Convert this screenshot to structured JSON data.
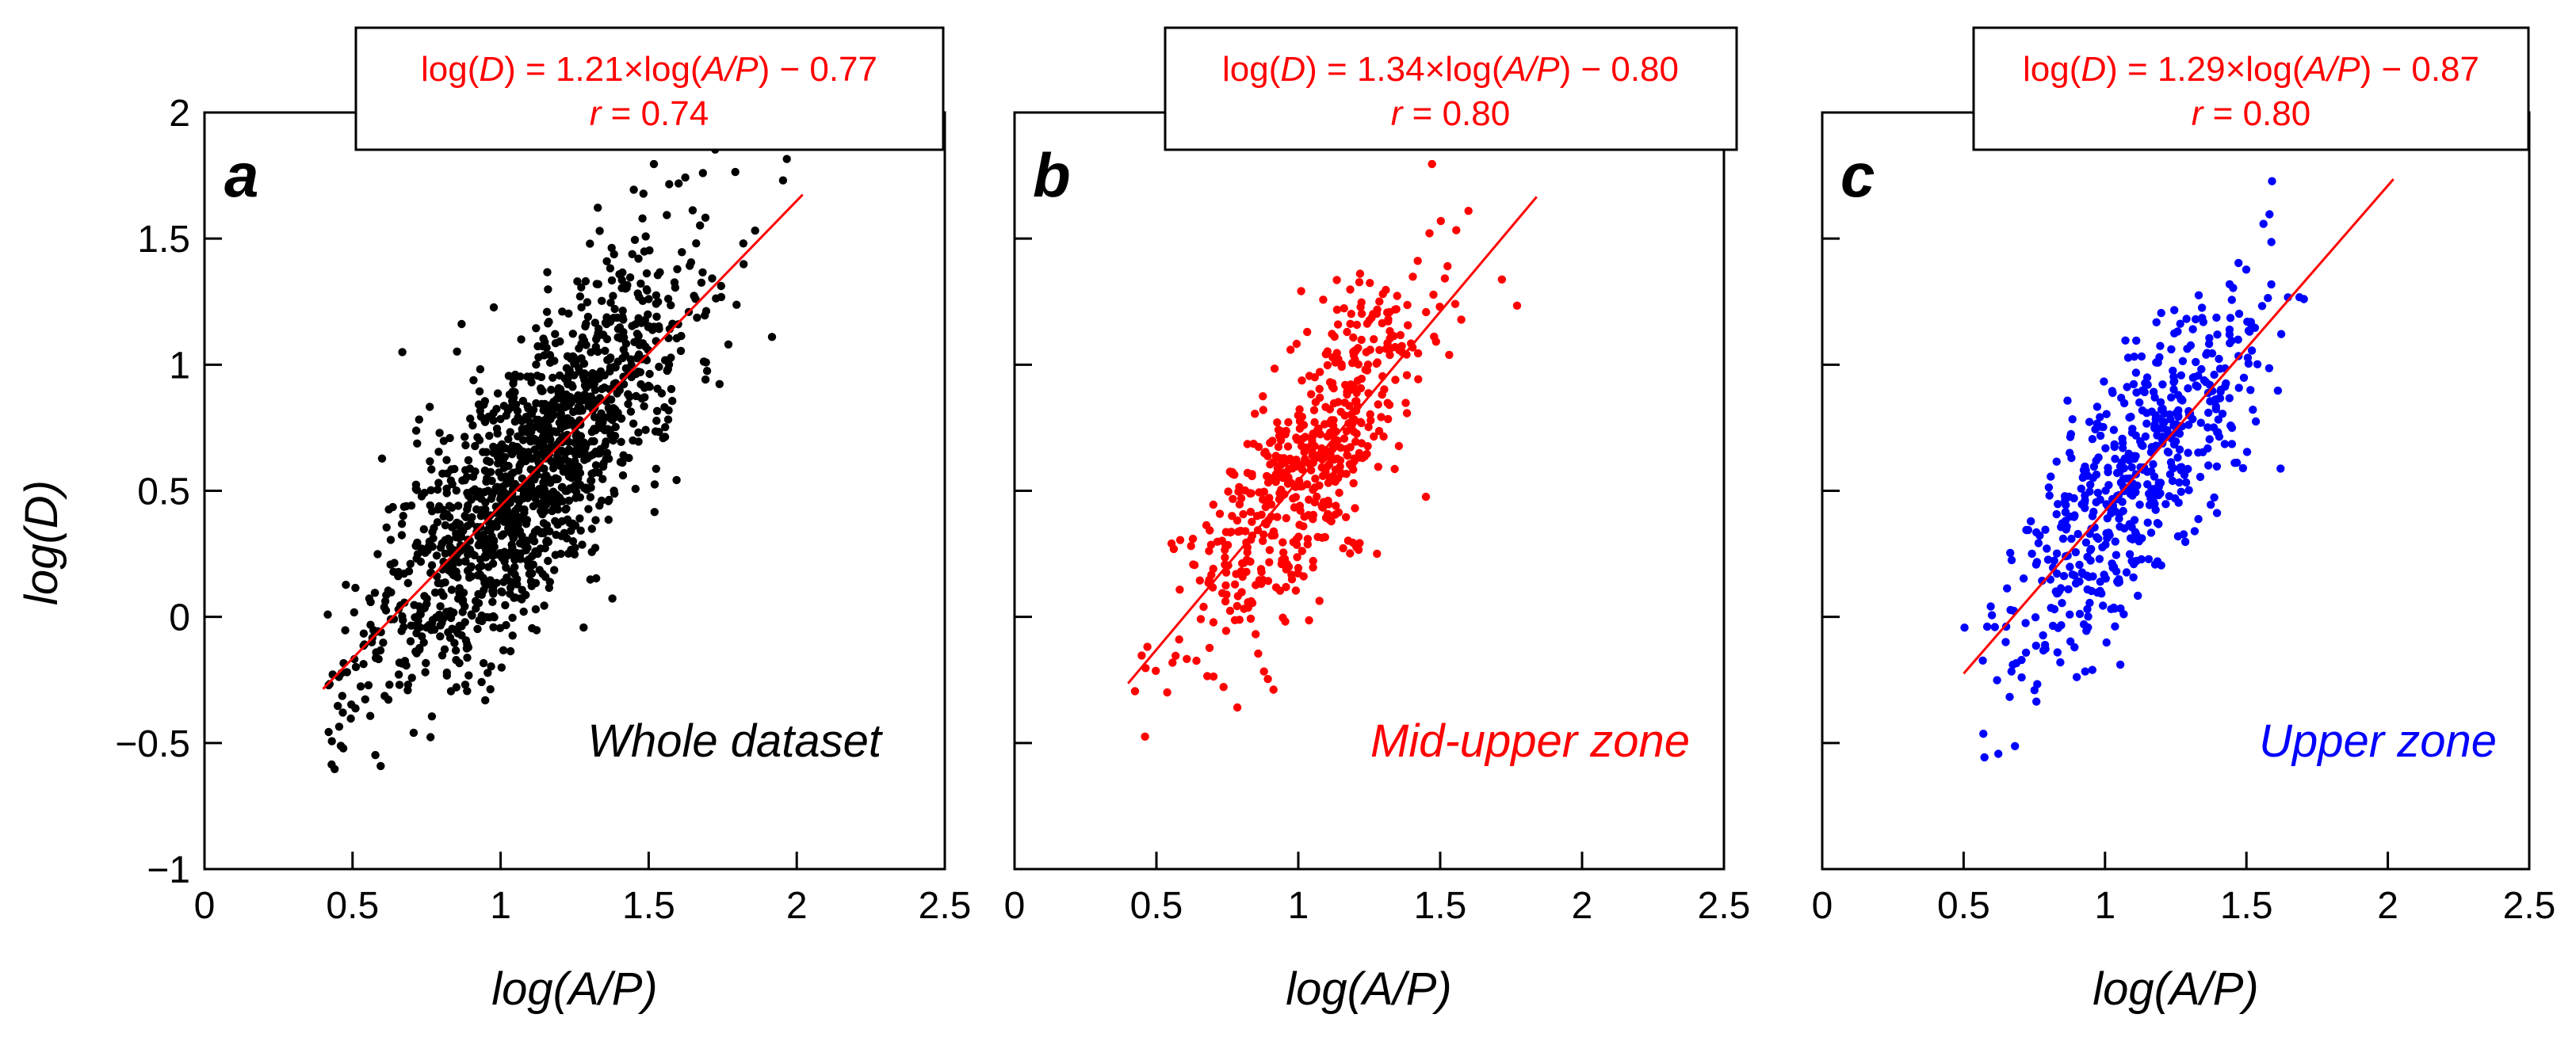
{
  "figure": {
    "ylabel": "log(D)",
    "xlabel": "log(A/P)",
    "xticks": [
      "0",
      "0.5",
      "1",
      "1.5",
      "2",
      "2.5"
    ],
    "yticks": [
      "2",
      "1.5",
      "1",
      "0.5",
      "0",
      "−0.5",
      "−1"
    ],
    "xlim": [
      0,
      2.5
    ],
    "ylim": [
      -1,
      2
    ]
  },
  "chart_data": [
    {
      "type": "scatter",
      "panel": "a",
      "label": "Whole dataset",
      "color": "#000000",
      "equation": {
        "lhs_fn": "log(",
        "lhs_var": "D",
        "mid": ") = 1.21×log(",
        "rhs_var": "A/P",
        "tail": ") − 0.77"
      },
      "r_text": {
        "var": "r",
        "value": " = 0.74"
      },
      "fit": {
        "slope": 1.21,
        "intercept": -0.77,
        "x_range": [
          0.4,
          2.02
        ],
        "color": "#ff0000"
      },
      "cloud": {
        "n": 1400,
        "x_center": 1.1,
        "x_sd": 0.27,
        "x_min": 0.4,
        "x_max": 2.0,
        "resid_sd": 0.27,
        "seed": 11
      }
    },
    {
      "type": "scatter",
      "panel": "b",
      "label": "Mid-upper zone",
      "color": "#ff0000",
      "equation": {
        "lhs_fn": "log(",
        "lhs_var": "D",
        "mid": ") = 1.34×log(",
        "rhs_var": "A/P",
        "tail": ") − 0.80"
      },
      "r_text": {
        "var": "r",
        "value": " = 0.80"
      },
      "fit": {
        "slope": 1.34,
        "intercept": -0.8,
        "x_range": [
          0.4,
          1.84
        ],
        "color": "#ff0000"
      },
      "cloud": {
        "n": 560,
        "x_center": 1.02,
        "x_sd": 0.22,
        "x_min": 0.4,
        "x_max": 1.8,
        "resid_sd": 0.24,
        "seed": 23
      }
    },
    {
      "type": "scatter",
      "panel": "c",
      "label": "Upper zone",
      "color": "#0000ff",
      "equation": {
        "lhs_fn": "log(",
        "lhs_var": "D",
        "mid": ") = 1.29×log(",
        "rhs_var": "A/P",
        "tail": ") − 0.87"
      },
      "r_text": {
        "var": "r",
        "value": " = 0.80"
      },
      "fit": {
        "slope": 1.29,
        "intercept": -0.87,
        "x_range": [
          0.5,
          2.02
        ],
        "color": "#ff0000"
      },
      "cloud": {
        "n": 560,
        "x_center": 1.12,
        "x_sd": 0.22,
        "x_min": 0.5,
        "x_max": 2.0,
        "resid_sd": 0.24,
        "seed": 37
      }
    }
  ]
}
